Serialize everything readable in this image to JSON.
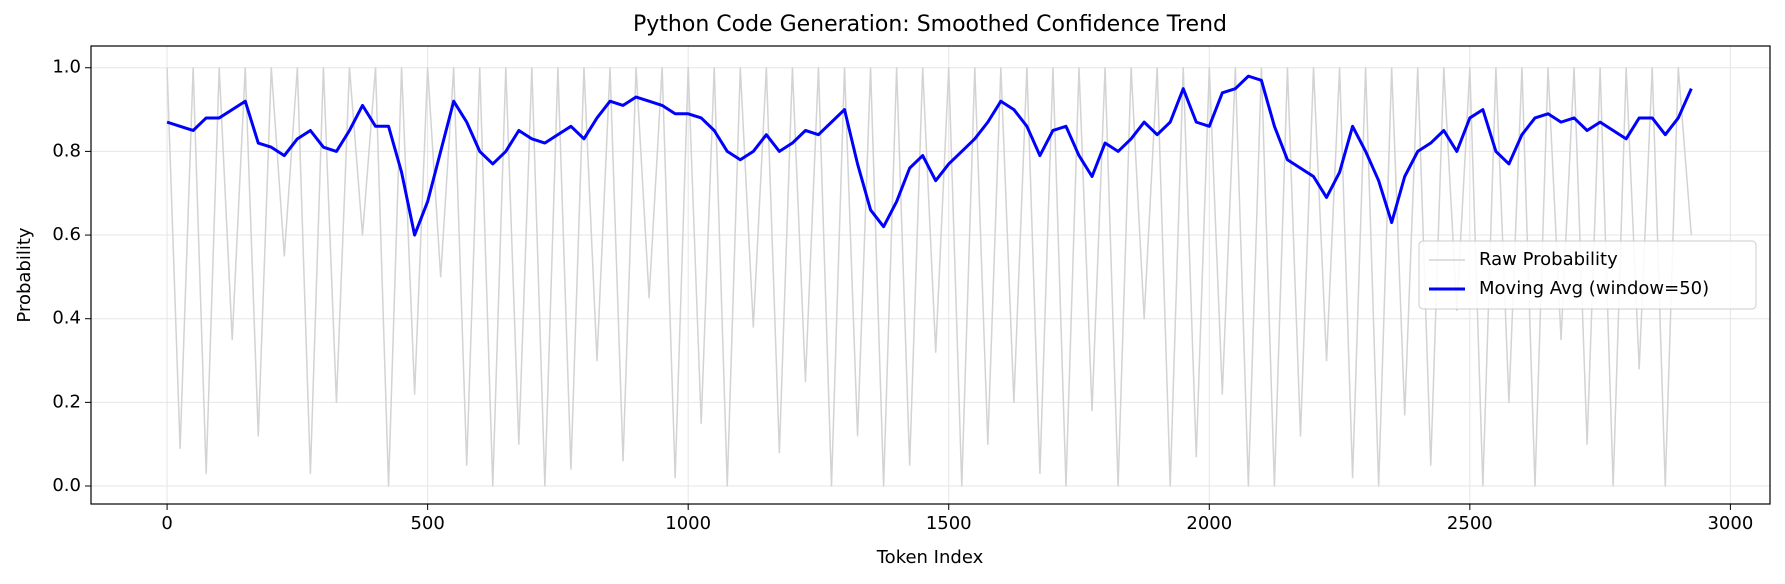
{
  "chart_data": {
    "type": "line",
    "title": "Python Code Generation: Smoothed Confidence Trend",
    "x_label": "Token Index",
    "y_label": "Probability",
    "x": [
      0,
      25,
      50,
      75,
      100,
      125,
      150,
      175,
      200,
      225,
      250,
      275,
      300,
      325,
      350,
      375,
      400,
      425,
      450,
      475,
      500,
      525,
      550,
      575,
      600,
      625,
      650,
      675,
      700,
      725,
      750,
      775,
      800,
      825,
      850,
      875,
      900,
      925,
      950,
      975,
      1000,
      1025,
      1050,
      1075,
      1100,
      1125,
      1150,
      1175,
      1200,
      1225,
      1250,
      1275,
      1300,
      1325,
      1350,
      1375,
      1400,
      1425,
      1450,
      1475,
      1500,
      1525,
      1550,
      1575,
      1600,
      1625,
      1650,
      1675,
      1700,
      1725,
      1750,
      1775,
      1800,
      1825,
      1850,
      1875,
      1900,
      1925,
      1950,
      1975,
      2000,
      2025,
      2050,
      2075,
      2100,
      2125,
      2150,
      2175,
      2200,
      2225,
      2250,
      2275,
      2300,
      2325,
      2350,
      2375,
      2400,
      2425,
      2450,
      2475,
      2500,
      2525,
      2550,
      2575,
      2600,
      2625,
      2650,
      2675,
      2700,
      2725,
      2750,
      2775,
      2800,
      2825,
      2850,
      2875,
      2900,
      2925
    ],
    "series": [
      {
        "name": "Raw Probability",
        "color": "#d3d3d3",
        "width": 1.5,
        "values": [
          1,
          0.09,
          1,
          0.03,
          1,
          0.35,
          1,
          0.12,
          1,
          0.55,
          1,
          0.03,
          1,
          0.2,
          1,
          0.6,
          1,
          0.0,
          1,
          0.22,
          1,
          0.5,
          1,
          0.05,
          1,
          0.0,
          1,
          0.1,
          1,
          0.0,
          1,
          0.04,
          1,
          0.3,
          1,
          0.06,
          1,
          0.45,
          1,
          0.02,
          1,
          0.15,
          1,
          0.0,
          1,
          0.38,
          1,
          0.08,
          1,
          0.25,
          1,
          0.0,
          1,
          0.12,
          1,
          0.0,
          1,
          0.05,
          1,
          0.32,
          1,
          0.0,
          1,
          0.1,
          1,
          0.2,
          1,
          0.03,
          1,
          0.0,
          1,
          0.18,
          1,
          0.0,
          1,
          0.4,
          1,
          0.0,
          1,
          0.07,
          1,
          0.22,
          1,
          0.0,
          1,
          0.0,
          1,
          0.12,
          1,
          0.3,
          1,
          0.02,
          1,
          0.0,
          1,
          0.17,
          1,
          0.05,
          1,
          0.42,
          1,
          0.0,
          1,
          0.2,
          1,
          0.0,
          1,
          0.35,
          1,
          0.1,
          1,
          0.0,
          1,
          0.28,
          1,
          0.0,
          1,
          0.6
        ]
      },
      {
        "name": "Moving Avg (window=50)",
        "color": "#0000ff",
        "width": 3,
        "values": [
          0.87,
          0.86,
          0.85,
          0.88,
          0.88,
          0.9,
          0.92,
          0.82,
          0.81,
          0.79,
          0.83,
          0.85,
          0.81,
          0.8,
          0.85,
          0.91,
          0.86,
          0.86,
          0.75,
          0.6,
          0.68,
          0.8,
          0.92,
          0.87,
          0.8,
          0.77,
          0.8,
          0.85,
          0.83,
          0.82,
          0.84,
          0.86,
          0.83,
          0.88,
          0.92,
          0.91,
          0.93,
          0.92,
          0.91,
          0.89,
          0.89,
          0.88,
          0.85,
          0.8,
          0.78,
          0.8,
          0.84,
          0.8,
          0.82,
          0.85,
          0.84,
          0.87,
          0.9,
          0.77,
          0.66,
          0.62,
          0.68,
          0.76,
          0.79,
          0.73,
          0.77,
          0.8,
          0.83,
          0.87,
          0.92,
          0.9,
          0.86,
          0.79,
          0.85,
          0.86,
          0.79,
          0.74,
          0.82,
          0.8,
          0.83,
          0.87,
          0.84,
          0.87,
          0.95,
          0.87,
          0.86,
          0.94,
          0.95,
          0.98,
          0.97,
          0.86,
          0.78,
          0.76,
          0.74,
          0.69,
          0.75,
          0.86,
          0.8,
          0.73,
          0.63,
          0.74,
          0.8,
          0.82,
          0.85,
          0.8,
          0.88,
          0.9,
          0.8,
          0.77,
          0.84,
          0.88,
          0.89,
          0.87,
          0.88,
          0.85,
          0.87,
          0.85,
          0.83,
          0.88,
          0.88,
          0.84,
          0.88,
          0.95
        ]
      }
    ],
    "xlim": [
      -146,
      3076
    ],
    "ylim": [
      -0.043,
      1.052
    ],
    "xticks": [
      0,
      500,
      1000,
      1500,
      2000,
      2500,
      3000
    ],
    "yticks": [
      {
        "value": 0,
        "label": "0.0"
      },
      {
        "value": 0.2,
        "label": "0.2"
      },
      {
        "value": 0.4,
        "label": "0.4"
      },
      {
        "value": 0.6,
        "label": "0.6"
      },
      {
        "value": 0.8,
        "label": "0.8"
      },
      {
        "value": 1,
        "label": "1.0"
      }
    ],
    "grid": true,
    "legend": "center right"
  }
}
